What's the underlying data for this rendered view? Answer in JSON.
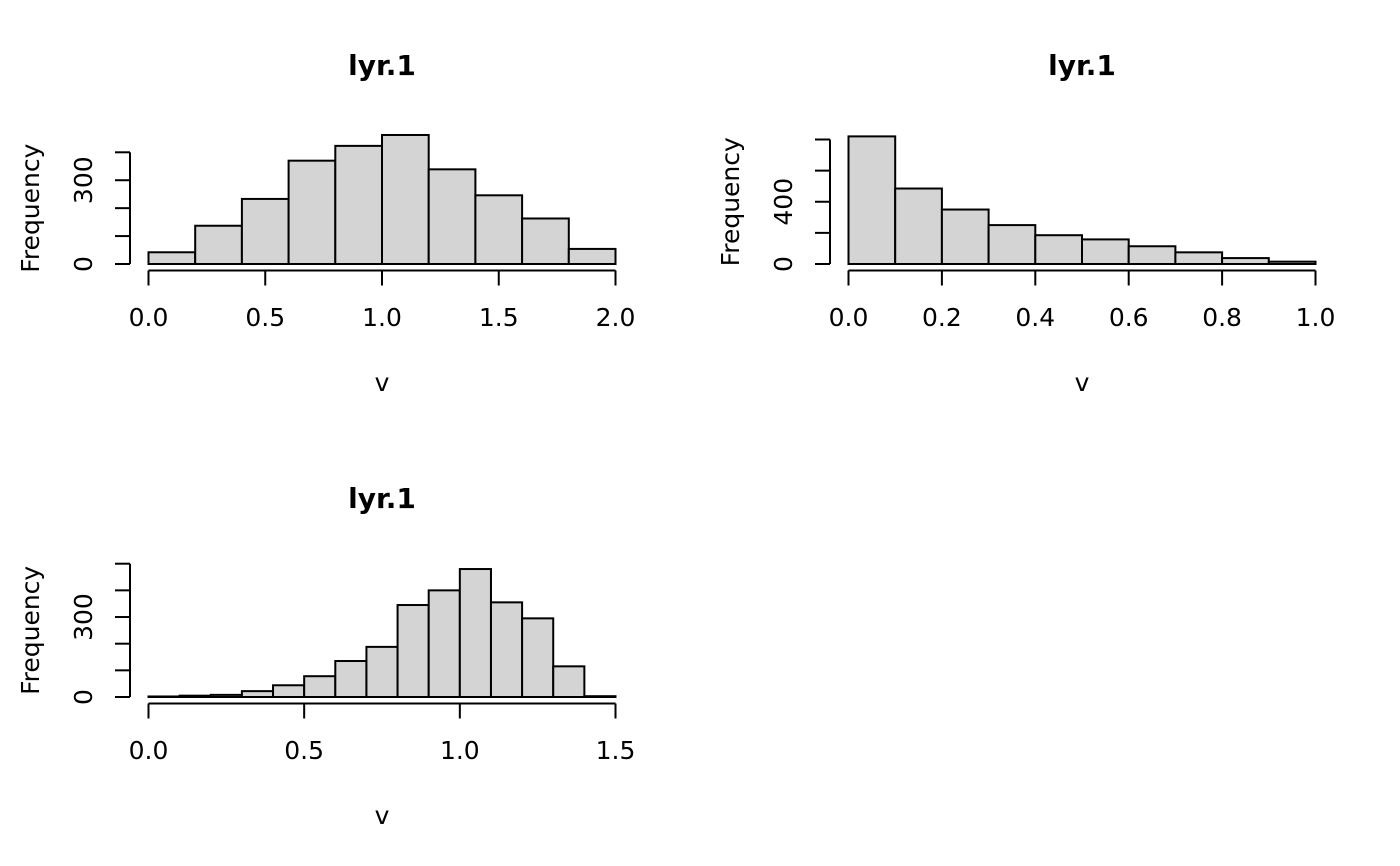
{
  "page": {
    "background": "#ffffff",
    "grid_layout": "2x2",
    "empty_cells": [
      "bottom-right"
    ]
  },
  "style": {
    "bar_fill": "#d4d4d4",
    "bar_stroke": "#000000",
    "axis_color": "#000000",
    "text_color": "#000000"
  },
  "chart_data": [
    {
      "type": "bar",
      "chart_kind": "histogram",
      "position": "top-left",
      "title": "lyr.1",
      "xlabel": "v",
      "ylabel": "Frequency",
      "bin_start": 0.0,
      "bin_width": 0.2,
      "counts": [
        42,
        137,
        233,
        370,
        423,
        462,
        339,
        246,
        163,
        54
      ],
      "x_range": [
        0.0,
        2.0
      ],
      "x_ticks": [
        0.0,
        0.5,
        1.0,
        1.5,
        2.0
      ],
      "x_tick_labels": [
        "0.0",
        "0.5",
        "1.0",
        "1.5",
        "2.0"
      ],
      "y_ticks": [
        0,
        100,
        200,
        300,
        400
      ],
      "y_tick_labels": [
        "0",
        "",
        "",
        "300",
        ""
      ],
      "y_axis_max": 400,
      "ylim": [
        0,
        480
      ],
      "grid": false,
      "legend": false
    },
    {
      "type": "bar",
      "chart_kind": "histogram",
      "position": "top-right",
      "title": "lyr.1",
      "xlabel": "v",
      "ylabel": "Frequency",
      "bin_start": 0.0,
      "bin_width": 0.1,
      "counts": [
        820,
        485,
        350,
        250,
        185,
        158,
        114,
        75,
        38,
        15
      ],
      "x_range": [
        0.0,
        1.0
      ],
      "x_ticks": [
        0.0,
        0.2,
        0.4,
        0.6,
        0.8,
        1.0
      ],
      "x_tick_labels": [
        "0.0",
        "0.2",
        "0.4",
        "0.6",
        "0.8",
        "1.0"
      ],
      "y_ticks": [
        0,
        200,
        400,
        600,
        800
      ],
      "y_tick_labels": [
        "0",
        "",
        "400",
        "",
        ""
      ],
      "y_axis_max": 800,
      "ylim": [
        0,
        853
      ],
      "grid": false,
      "legend": false
    },
    {
      "type": "bar",
      "chart_kind": "histogram",
      "position": "bottom-left",
      "title": "lyr.1",
      "xlabel": "v",
      "ylabel": "Frequency",
      "bin_start": 0.0,
      "bin_width": 0.1,
      "counts": [
        2,
        5,
        8,
        22,
        44,
        78,
        135,
        188,
        345,
        400,
        480,
        355,
        295,
        115,
        3
      ],
      "x_range": [
        0.0,
        1.5
      ],
      "x_ticks": [
        0.0,
        0.5,
        1.0,
        1.5
      ],
      "x_tick_labels": [
        "0.0",
        "0.5",
        "1.0",
        "1.5"
      ],
      "y_ticks": [
        0,
        100,
        200,
        300,
        400,
        500
      ],
      "y_tick_labels": [
        "0",
        "",
        "",
        "300",
        "",
        ""
      ],
      "y_axis_max": 500,
      "ylim": [
        0,
        502
      ],
      "grid": false,
      "legend": false
    }
  ]
}
